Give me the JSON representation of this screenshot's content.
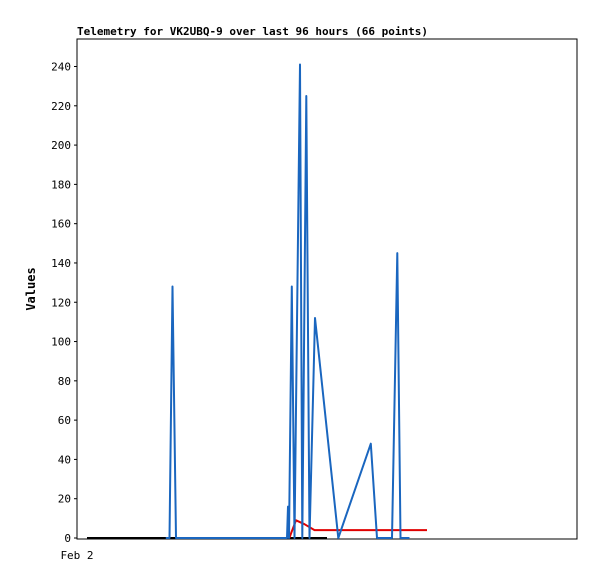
{
  "chart_data": {
    "type": "line",
    "title": "Telemetry for VK2UBQ-9 over last 96 hours (66 points)",
    "ylabel": "Values",
    "xlabel": "",
    "x_tick_labels": [
      "Feb 2"
    ],
    "ylim": [
      0,
      254
    ],
    "y_ticks": [
      0,
      20,
      40,
      60,
      80,
      100,
      120,
      140,
      160,
      180,
      200,
      220,
      240
    ],
    "grid": false,
    "colors": {
      "blue": "#1a66bf",
      "red": "#e00000",
      "black": "#000000"
    },
    "series": [
      {
        "color": "#000000",
        "points": [
          [
            4,
            0
          ],
          [
            100,
            0
          ]
        ]
      },
      {
        "color": "#e00000",
        "points": [
          [
            84.9,
            0
          ],
          [
            87.6,
            9
          ],
          [
            91,
            7
          ],
          [
            95,
            4
          ],
          [
            100,
            4
          ],
          [
            130,
            4
          ],
          [
            140,
            4
          ]
        ]
      },
      {
        "color": "#1a66bf",
        "points": [
          [
            35.5,
            0
          ],
          [
            37,
            0
          ],
          [
            38.2,
            128
          ],
          [
            39.6,
            0
          ],
          [
            84,
            0
          ],
          [
            84.4,
            16
          ],
          [
            84.8,
            0
          ],
          [
            85.9,
            128
          ],
          [
            87,
            0
          ],
          [
            89.2,
            241
          ],
          [
            90.1,
            0
          ],
          [
            91.7,
            225
          ],
          [
            93,
            0
          ],
          [
            95.2,
            112
          ],
          [
            104.5,
            0
          ],
          [
            117.5,
            48
          ],
          [
            120,
            0
          ],
          [
            126,
            0
          ],
          [
            128.1,
            145
          ],
          [
            129.4,
            0
          ],
          [
            133,
            0
          ]
        ]
      }
    ]
  }
}
